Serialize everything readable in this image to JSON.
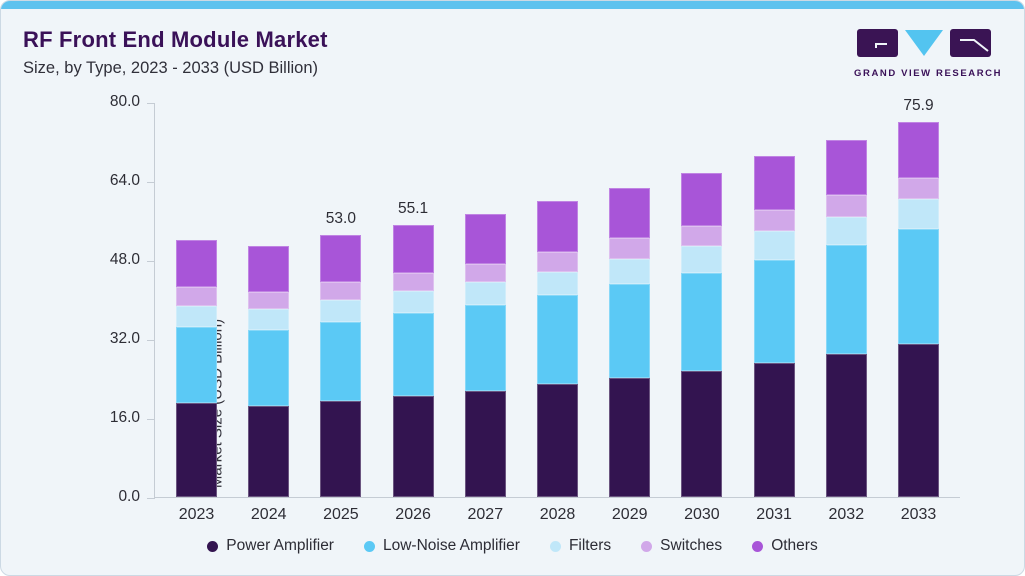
{
  "header": {
    "title": "RF Front End Module Market",
    "subtitle": "Size, by Type, 2023 - 2033 (USD Billion)"
  },
  "logo": {
    "text": "GRAND VIEW RESEARCH",
    "brand_purple": "#3a1454",
    "brand_cyan": "#53c4f0"
  },
  "chart_data": {
    "type": "bar",
    "stacked": true,
    "title": "RF Front End Module Market Size, by Type, 2023 - 2033 (USD Billion)",
    "ylabel": "Market Size (USD Billion)",
    "xlabel": "",
    "ylim": [
      0,
      80
    ],
    "yticks": [
      0,
      16,
      32,
      48,
      64,
      80
    ],
    "ytick_labels": [
      "0.0",
      "16.0",
      "32.0",
      "48.0",
      "64.0",
      "80.0"
    ],
    "grid": false,
    "legend_position": "bottom",
    "categories": [
      "2023",
      "2024",
      "2025",
      "2026",
      "2027",
      "2028",
      "2029",
      "2030",
      "2031",
      "2032",
      "2033"
    ],
    "series": [
      {
        "name": "Power Amplifier",
        "color": "#331450",
        "values": [
          19.0,
          18.5,
          19.4,
          20.4,
          21.5,
          22.8,
          24.1,
          25.6,
          27.2,
          28.9,
          30.9
        ]
      },
      {
        "name": "Low-Noise Amplifier",
        "color": "#5bc9f5",
        "values": [
          15.4,
          15.3,
          16.0,
          16.8,
          17.4,
          18.2,
          19.1,
          19.8,
          20.8,
          22.1,
          23.3
        ]
      },
      {
        "name": "Filters",
        "color": "#c0e7f9",
        "values": [
          4.3,
          4.2,
          4.4,
          4.5,
          4.6,
          4.6,
          5.1,
          5.4,
          5.8,
          5.8,
          6.1
        ]
      },
      {
        "name": "Switches",
        "color": "#d1a8e9",
        "values": [
          3.8,
          3.6,
          3.8,
          3.7,
          3.7,
          4.1,
          4.1,
          4.1,
          4.3,
          4.4,
          4.4
        ]
      },
      {
        "name": "Others",
        "color": "#a855d8",
        "values": [
          9.6,
          9.3,
          9.4,
          9.7,
          10.1,
          10.3,
          10.2,
          10.8,
          11.0,
          11.2,
          11.2
        ]
      }
    ],
    "totals": [
      52.1,
      50.9,
      53.0,
      55.1,
      57.3,
      60.0,
      62.6,
      65.7,
      69.1,
      72.4,
      75.9
    ],
    "bar_labels": [
      {
        "category": "2025",
        "label": "53.0"
      },
      {
        "category": "2026",
        "label": "55.1"
      },
      {
        "category": "2033",
        "label": "75.9"
      }
    ]
  }
}
